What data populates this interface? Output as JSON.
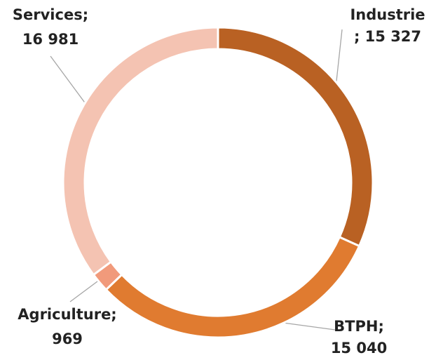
{
  "chart_data": {
    "type": "donut",
    "labels": [
      [
        "Industrie",
        "; 15 327"
      ],
      [
        "BTPH;",
        "15 040"
      ],
      [
        "Agriculture;",
        "969"
      ],
      [
        "Services;",
        "16 981"
      ]
    ],
    "values": [
      15327,
      15040,
      969,
      16981
    ],
    "colors": [
      "#b96123",
      "#e07b30",
      "#f19a7b",
      "#f4c3b2"
    ]
  }
}
